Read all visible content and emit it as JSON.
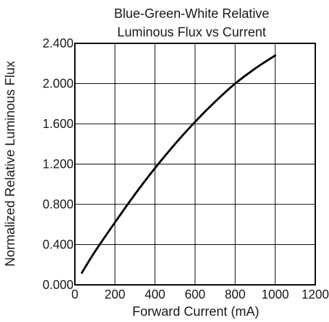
{
  "chart_data": {
    "type": "line",
    "title": [
      "Blue-Green-White Relative",
      "Luminous Flux vs Current"
    ],
    "xlabel": "Forward Current (mA)",
    "ylabel": "Normalized Relative Luminous Flux",
    "xlim": [
      0,
      1200
    ],
    "ylim": [
      0,
      2.4
    ],
    "x_ticks": [
      0,
      200,
      400,
      600,
      800,
      1000,
      1200
    ],
    "x_tick_labels": [
      "0",
      "200",
      "400",
      "600",
      "800",
      "1000",
      "1200"
    ],
    "y_ticks": [
      0,
      0.4,
      0.8,
      1.2,
      1.6,
      2.0,
      2.4
    ],
    "y_tick_labels": [
      "0.000",
      "0.400",
      "0.800",
      "1.200",
      "1.600",
      "2.000",
      "2.400"
    ],
    "grid": true,
    "series": [
      {
        "color": "#000000",
        "x": [
          35,
          100,
          200,
          300,
          400,
          500,
          600,
          700,
          800,
          900,
          1000
        ],
        "y": [
          0.12,
          0.33,
          0.62,
          0.9,
          1.16,
          1.4,
          1.62,
          1.82,
          2.0,
          2.15,
          2.28
        ]
      }
    ]
  }
}
